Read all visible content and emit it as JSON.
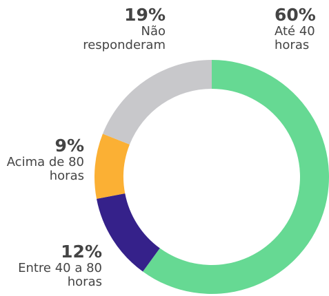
{
  "chart_data": {
    "type": "donut",
    "categories": [
      "Até 40 horas",
      "Entre 40 a 80 horas",
      "Acima de 80 horas",
      "Não responderam"
    ],
    "values": [
      60,
      12,
      9,
      19
    ],
    "value_labels": [
      "60%",
      "12%",
      "9%",
      "19%"
    ],
    "colors": [
      "#66d993",
      "#35218a",
      "#fbb034",
      "#c8c8cb"
    ]
  }
}
